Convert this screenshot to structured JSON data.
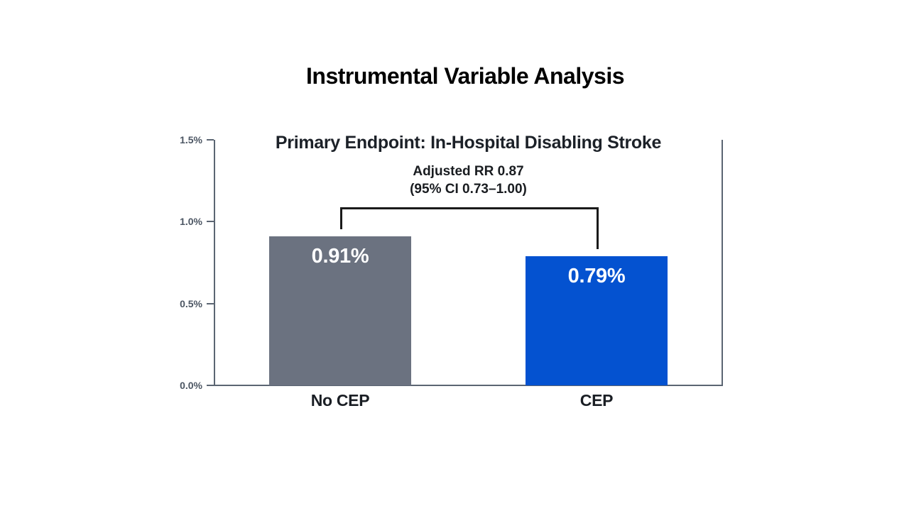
{
  "main_title": "Instrumental Variable Analysis",
  "chart_data": {
    "type": "bar",
    "title": "Primary Endpoint: In-Hospital Disabling Stroke",
    "annotation": [
      "Adjusted RR 0.87",
      "(95% CI 0.73–1.00)"
    ],
    "categories": [
      "No CEP",
      "CEP"
    ],
    "values": [
      0.91,
      0.79
    ],
    "value_labels": [
      "0.91%",
      "0.79%"
    ],
    "bar_colors": [
      "#6B7280",
      "#0452D0"
    ],
    "xlabel": "",
    "ylabel": "",
    "ylim": [
      0,
      1.5
    ],
    "yticks": [
      "0.0%",
      "0.5%",
      "1.0%",
      "1.5%"
    ],
    "ytick_values": [
      0,
      0.5,
      1.0,
      1.5
    ],
    "grid": false,
    "legend": null,
    "axis_color": "#5b6572",
    "bracket_color": "#1a1a1a",
    "value_label_color": "#ffffff"
  }
}
